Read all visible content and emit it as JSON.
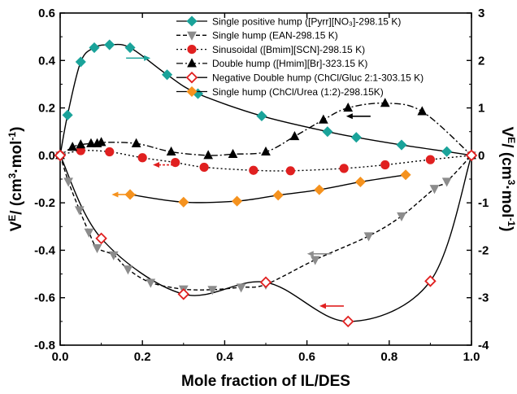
{
  "chart_data": {
    "type": "scatter",
    "xlabel": "Mole fraction of IL/DES",
    "ylabel_left": "V^E/ (cm^3·mol^-1)",
    "ylabel_right": "V^E/ (cm^3·mol^-1)",
    "xlim": [
      0.0,
      1.0
    ],
    "ylim_left": [
      -0.8,
      0.6
    ],
    "ylim_right": [
      -4,
      3
    ],
    "x_ticks": [
      "0.0",
      "0.2",
      "0.4",
      "0.6",
      "0.8",
      "1.0"
    ],
    "y_ticks_left": [
      "-0.8",
      "-0.6",
      "-0.4",
      "-0.2",
      "0.0",
      "0.2",
      "0.4",
      "0.6"
    ],
    "y_ticks_right": [
      "-4",
      "-3",
      "-2",
      "-1",
      "0",
      "1",
      "2",
      "3"
    ],
    "legend_position": "top-right",
    "series": [
      {
        "name": "Single positive hump ([Pyrr][NO₃]-298.15 K)",
        "marker": "diamond",
        "color": "#1aa39a",
        "filled": true,
        "line": "solid",
        "axis": "right",
        "x": [
          0,
          0.018,
          0.05,
          0.083,
          0.12,
          0.17,
          0.26,
          0.335,
          0.49,
          0.65,
          0.72,
          0.83,
          0.94,
          1.0
        ],
        "y": [
          0,
          0.85,
          1.97,
          2.27,
          2.33,
          2.27,
          1.7,
          1.3,
          0.83,
          0.5,
          0.38,
          0.22,
          0.08,
          0
        ]
      },
      {
        "name": "Single hump (EAN-298.15 K)",
        "marker": "triangle-down",
        "color": "#8c8c8c",
        "filled": true,
        "line": "dashed",
        "axis": "right",
        "x": [
          0,
          0.02,
          0.047,
          0.07,
          0.09,
          0.13,
          0.165,
          0.22,
          0.3,
          0.37,
          0.44,
          0.5,
          0.62,
          0.75,
          0.83,
          0.91,
          0.94,
          1.0
        ],
        "y": [
          0,
          -0.55,
          -1.15,
          -1.62,
          -1.95,
          -2.1,
          -2.4,
          -2.68,
          -2.82,
          -2.83,
          -2.78,
          -2.72,
          -2.2,
          -1.7,
          -1.28,
          -0.7,
          -0.55,
          0
        ]
      },
      {
        "name": "Sinusoidal ([Bmim][SCN]-298.15 K)",
        "marker": "circle",
        "color": "#e02020",
        "filled": true,
        "line": "dotted",
        "axis": "left",
        "x": [
          0,
          0.05,
          0.12,
          0.2,
          0.28,
          0.35,
          0.47,
          0.56,
          0.69,
          0.79,
          0.9,
          1.0
        ],
        "y": [
          0,
          0.02,
          0.015,
          -0.01,
          -0.03,
          -0.05,
          -0.063,
          -0.065,
          -0.055,
          -0.04,
          -0.018,
          0
        ]
      },
      {
        "name": "Double hump ([Hmim][Br]-323.15 K)",
        "marker": "triangle-up",
        "color": "#000000",
        "filled": true,
        "line": "dashdot",
        "axis": "left",
        "x": [
          0,
          0.03,
          0.05,
          0.075,
          0.09,
          0.1,
          0.185,
          0.27,
          0.36,
          0.42,
          0.5,
          0.57,
          0.64,
          0.7,
          0.79,
          0.88,
          1.0
        ],
        "y": [
          0,
          0.035,
          0.045,
          0.05,
          0.05,
          0.055,
          0.05,
          0.015,
          0.0,
          0.005,
          0.015,
          0.08,
          0.15,
          0.2,
          0.22,
          0.185,
          0
        ]
      },
      {
        "name": "Negative Double hump (ChCl/Gluc 2:1-303.15 K)",
        "marker": "diamond",
        "color": "#e02020",
        "filled": false,
        "line": "solid",
        "axis": "left",
        "x": [
          0,
          0.1,
          0.3,
          0.5,
          0.7,
          0.9,
          1.0
        ],
        "y": [
          0,
          -0.35,
          -0.585,
          -0.535,
          -0.7,
          -0.53,
          0
        ]
      },
      {
        "name": "Single hump (ChCl/Urea (1:2)-298.15K)",
        "marker": "diamond",
        "color": "#f5921e",
        "filled": true,
        "line": "solid",
        "axis": "left",
        "x": [
          0.17,
          0.3,
          0.43,
          0.53,
          0.63,
          0.73,
          0.84
        ],
        "y": [
          -0.165,
          -0.197,
          -0.193,
          -0.168,
          -0.145,
          -0.112,
          -0.082
        ]
      }
    ],
    "annotations": [
      {
        "type": "arrow",
        "color": "#1aa39a",
        "direction": "right",
        "x": 0.19,
        "y": 0.41
      },
      {
        "type": "arrow",
        "color": "#000000",
        "direction": "left",
        "x": 0.725,
        "y": 0.165
      },
      {
        "type": "arrow",
        "color": "#e02020",
        "style": "dotted",
        "direction": "left",
        "x": 0.255,
        "y": -0.04
      },
      {
        "type": "arrow",
        "color": "#f5921e",
        "direction": "left",
        "x": 0.155,
        "y": -0.165
      },
      {
        "type": "arrow",
        "color": "#8c8c8c",
        "direction": "left",
        "x": 0.63,
        "y": -0.415
      },
      {
        "type": "arrow",
        "color": "#e02020",
        "direction": "left",
        "x": 0.66,
        "y": -0.635
      }
    ]
  }
}
